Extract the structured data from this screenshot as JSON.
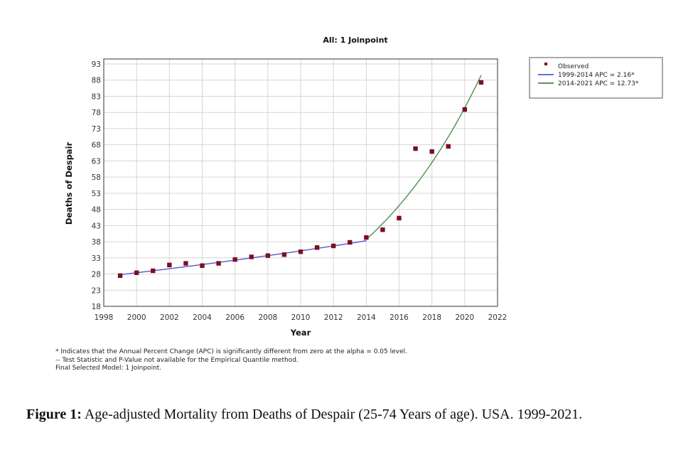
{
  "chart_data": {
    "type": "scatter",
    "title": "All: 1 Joinpoint",
    "xlabel": "Year",
    "ylabel": "Deaths of Despair",
    "xlim": [
      1998,
      2022
    ],
    "ylim": [
      18,
      93
    ],
    "x_ticks": [
      1998,
      2000,
      2002,
      2004,
      2006,
      2008,
      2010,
      2012,
      2014,
      2016,
      2018,
      2020,
      2022
    ],
    "y_ticks": [
      18,
      23,
      28,
      33,
      38,
      43,
      48,
      53,
      58,
      63,
      68,
      73,
      78,
      83,
      88,
      93
    ],
    "grid": true,
    "legend_position": "top-right-outside",
    "observed": {
      "name": "Observed",
      "color": "#7a1022",
      "x": [
        1999,
        2000,
        2001,
        2002,
        2003,
        2004,
        2005,
        2006,
        2007,
        2008,
        2009,
        2010,
        2011,
        2012,
        2013,
        2014,
        2015,
        2016,
        2017,
        2018,
        2019,
        2020,
        2021
      ],
      "y": [
        27.5,
        28.4,
        29.0,
        30.8,
        31.3,
        30.6,
        31.3,
        32.5,
        33.3,
        33.7,
        34.0,
        34.9,
        36.2,
        36.7,
        37.8,
        39.3,
        41.7,
        45.3,
        66.8,
        65.9,
        67.5,
        78.9,
        87.3
      ]
    },
    "series": [
      {
        "name": "1999-2014 APC  =  2.16*",
        "type": "line",
        "color": "#5a52d6",
        "segment": [
          1999,
          2014
        ],
        "start_value": 27.8,
        "apc_percent": 2.16
      },
      {
        "name": "2014-2021 APC  =  12.73*",
        "type": "line",
        "color": "#4f8f4f",
        "segment": [
          2014,
          2021
        ],
        "start_value": 38.7,
        "apc_percent": 12.73
      }
    ],
    "legend": [
      {
        "label": "Observed",
        "kind": "marker",
        "color": "#7a1022"
      },
      {
        "label": "1999-2014 APC  =  2.16*",
        "kind": "line",
        "color": "#3b3bd6"
      },
      {
        "label": "2014-2021 APC  =  12.73*",
        "kind": "line",
        "color": "#2e6e2e"
      }
    ]
  },
  "notes": [
    "* Indicates that the Annual Percent Change (APC) is significantly different from zero at the alpha = 0.05 level.",
    " -- Test Statistic and P-Value not available for the Empirical Quantile method.",
    "Final Selected Model: 1 Joinpoint."
  ],
  "caption": {
    "label": "Figure 1:",
    "text": " Age-adjusted Mortality from Deaths of Despair (25-74 Years of age). USA. 1999-2021."
  }
}
